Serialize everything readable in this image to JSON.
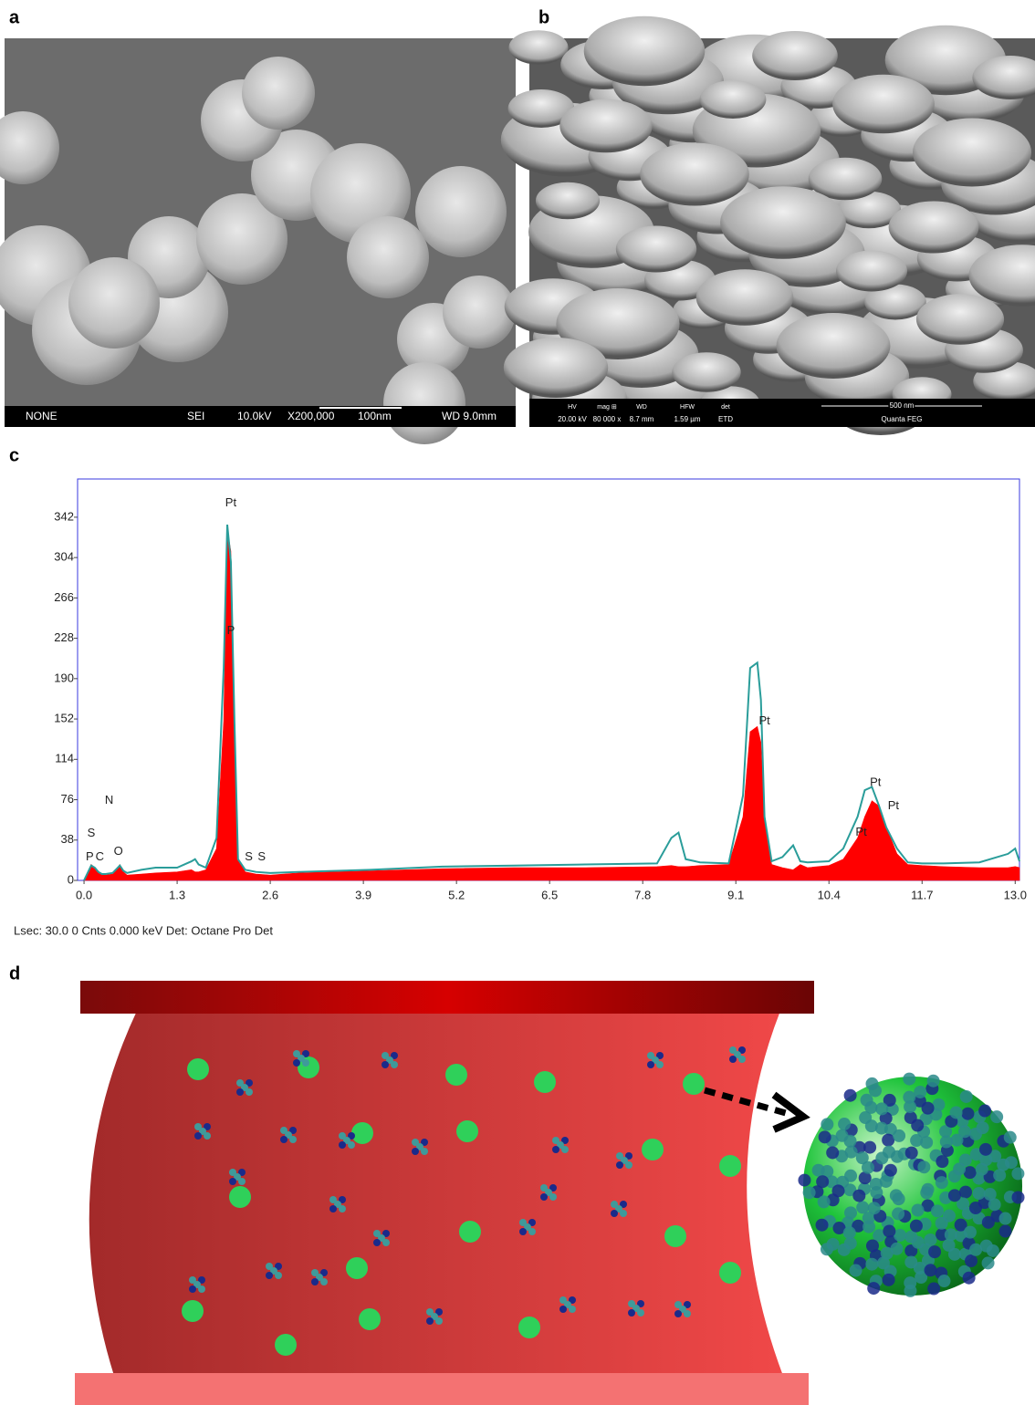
{
  "figure": {
    "panel_labels": [
      "a",
      "b",
      "c",
      "d"
    ],
    "image_a_bar": [
      "NONE",
      "SEI",
      "10.0kV",
      "X200,000",
      "100nm",
      "WD 9.0mm"
    ],
    "image_b_bar": {
      "fields": [
        [
          "HV",
          "20.00 kV"
        ],
        [
          "mag ⊞",
          "80 000 x"
        ],
        [
          "WD",
          "8.7 mm"
        ],
        [
          "HFW",
          "1.59 µm"
        ],
        [
          "det",
          "ETD"
        ]
      ],
      "scale": "500 nm",
      "instrument": "Quanta FEG"
    },
    "footer": "Lsec: 30.0 0 Cnts  0.000 keV Det: Octane Pro Det"
  },
  "chart_data": {
    "type": "area",
    "x": [
      0,
      0.1,
      0.15,
      0.2,
      0.25,
      0.3,
      0.4,
      0.5,
      0.55,
      0.6,
      0.8,
      1.0,
      1.3,
      1.5,
      1.55,
      1.6,
      1.7,
      1.85,
      1.95,
      2.0,
      2.05,
      2.1,
      2.15,
      2.25,
      2.4,
      2.6,
      3.0,
      4.0,
      5.0,
      6.0,
      7.0,
      8.0,
      8.2,
      8.3,
      8.4,
      8.6,
      9.0,
      9.2,
      9.3,
      9.4,
      9.45,
      9.5,
      9.6,
      9.75,
      9.9,
      10.0,
      10.1,
      10.4,
      10.6,
      10.8,
      10.9,
      11.0,
      11.1,
      11.2,
      11.35,
      11.5,
      11.7,
      12.0,
      12.5,
      12.9,
      13.0,
      13.06
    ],
    "series": [
      {
        "color": "#ff0000",
        "filled": true,
        "values": [
          0,
          15,
          12,
          8,
          5,
          5,
          6,
          15,
          8,
          5,
          6,
          7,
          8,
          10,
          8,
          8,
          10,
          30,
          150,
          330,
          310,
          120,
          20,
          8,
          6,
          5,
          7,
          9,
          11,
          12,
          12,
          13,
          14,
          13,
          13,
          14,
          15,
          60,
          140,
          145,
          130,
          60,
          15,
          12,
          10,
          15,
          12,
          14,
          20,
          40,
          60,
          75,
          70,
          50,
          25,
          15,
          14,
          13,
          12,
          12,
          13,
          12
        ]
      },
      {
        "color": "#2a9d9a",
        "filled": false,
        "values": [
          0,
          14,
          12,
          8,
          6,
          6,
          7,
          14,
          9,
          7,
          10,
          12,
          12,
          18,
          20,
          15,
          12,
          40,
          200,
          335,
          300,
          150,
          20,
          10,
          8,
          7,
          8,
          10,
          13,
          14,
          15,
          16,
          40,
          45,
          20,
          17,
          16,
          80,
          200,
          205,
          170,
          60,
          18,
          22,
          33,
          18,
          17,
          18,
          30,
          60,
          85,
          88,
          70,
          50,
          30,
          17,
          16,
          16,
          17,
          25,
          30,
          18
        ]
      }
    ],
    "xlim": [
      -0.09,
      13.06
    ],
    "ylim": [
      0,
      378
    ],
    "xticks": [
      {
        "value": 0,
        "label": "0.0"
      },
      1.3,
      2.6,
      3.9,
      5.2,
      6.5,
      7.8,
      9.1,
      10.4,
      11.7,
      {
        "value": 13,
        "label": "13.0"
      }
    ],
    "yticks": [
      0,
      38,
      76,
      114,
      152,
      190,
      228,
      266,
      304,
      342
    ],
    "frame_color": "#3a3adf",
    "annotations": [
      {
        "text": "Pt",
        "x": 2.05,
        "y": 355
      },
      {
        "text": "P",
        "x": 2.05,
        "y": 235
      },
      {
        "text": "Pt",
        "x": 9.5,
        "y": 150
      },
      {
        "text": "Pt",
        "x": 11.05,
        "y": 92
      },
      {
        "text": "Pt",
        "x": 11.3,
        "y": 70
      },
      {
        "text": "Pt",
        "x": 10.85,
        "y": 45
      },
      {
        "text": "S",
        "x": 0.1,
        "y": 44
      },
      {
        "text": "N",
        "x": 0.35,
        "y": 75
      },
      {
        "text": "P",
        "x": 0.08,
        "y": 22
      },
      {
        "text": "C",
        "x": 0.22,
        "y": 22
      },
      {
        "text": "O",
        "x": 0.48,
        "y": 27
      },
      {
        "text": "S",
        "x": 2.3,
        "y": 22
      },
      {
        "text": "S",
        "x": 2.48,
        "y": 22
      }
    ]
  }
}
